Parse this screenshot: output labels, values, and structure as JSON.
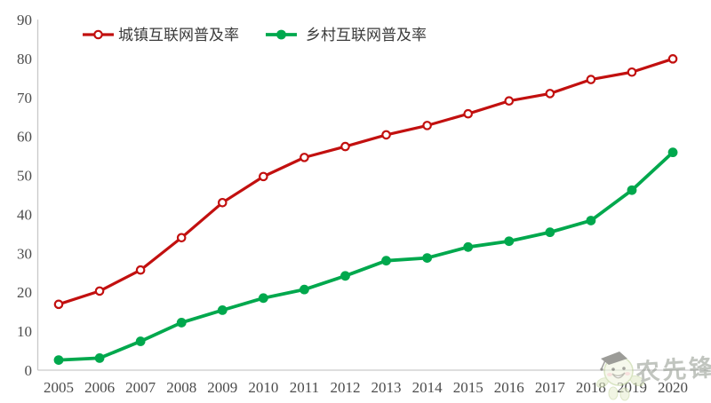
{
  "chart_data": {
    "type": "line",
    "x": [
      "2005",
      "2006",
      "2007",
      "2008",
      "2009",
      "2010",
      "2011",
      "2012",
      "2013",
      "2014",
      "2015",
      "2016",
      "2017",
      "2018",
      "2019",
      "2020"
    ],
    "series": [
      {
        "name": "城镇互联网普及率",
        "color": "#c2100f",
        "marker": "open-circle",
        "values": [
          16.9,
          20.3,
          25.7,
          34.0,
          43.0,
          49.7,
          54.6,
          57.4,
          60.4,
          62.8,
          65.8,
          69.1,
          71.0,
          74.6,
          76.5,
          79.9
        ]
      },
      {
        "name": "乡村互联网普及率",
        "color": "#00a84d",
        "marker": "filled-circle",
        "values": [
          2.6,
          3.1,
          7.4,
          12.2,
          15.4,
          18.5,
          20.7,
          24.2,
          28.1,
          28.8,
          31.6,
          33.1,
          35.4,
          38.4,
          46.2,
          55.9
        ]
      }
    ],
    "ylim": [
      0,
      90
    ],
    "ytick_step": 10,
    "xlabel": "",
    "ylabel": "",
    "title": "",
    "grid": false,
    "legend_position": "top-left",
    "axis_color": "#c9c9c9",
    "tick_label_color": "#4c4c4c"
  },
  "watermark": {
    "text": "农先锋",
    "logo": "graduate-mascot"
  }
}
